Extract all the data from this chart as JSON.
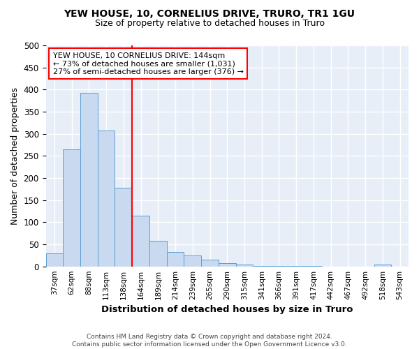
{
  "title1": "YEW HOUSE, 10, CORNELIUS DRIVE, TRURO, TR1 1GU",
  "title2": "Size of property relative to detached houses in Truro",
  "xlabel": "Distribution of detached houses by size in Truro",
  "ylabel": "Number of detached properties",
  "bar_color": "#c8d9f0",
  "bar_edge_color": "#5a9fd4",
  "categories": [
    "37sqm",
    "62sqm",
    "88sqm",
    "113sqm",
    "138sqm",
    "164sqm",
    "189sqm",
    "214sqm",
    "239sqm",
    "265sqm",
    "290sqm",
    "315sqm",
    "341sqm",
    "366sqm",
    "391sqm",
    "417sqm",
    "442sqm",
    "467sqm",
    "492sqm",
    "518sqm",
    "543sqm"
  ],
  "values": [
    30,
    265,
    393,
    307,
    178,
    115,
    58,
    33,
    25,
    15,
    8,
    4,
    1,
    1,
    1,
    1,
    0,
    0,
    0,
    5,
    0
  ],
  "vline_x": 4.5,
  "annotation_text": "YEW HOUSE, 10 CORNELIUS DRIVE: 144sqm\n← 73% of detached houses are smaller (1,031)\n27% of semi-detached houses are larger (376) →",
  "footer": "Contains HM Land Registry data © Crown copyright and database right 2024.\nContains public sector information licensed under the Open Government Licence v3.0.",
  "ylim": [
    0,
    500
  ],
  "fig_bg": "#ffffff",
  "axes_bg": "#e8eef8",
  "grid_color": "#ffffff"
}
